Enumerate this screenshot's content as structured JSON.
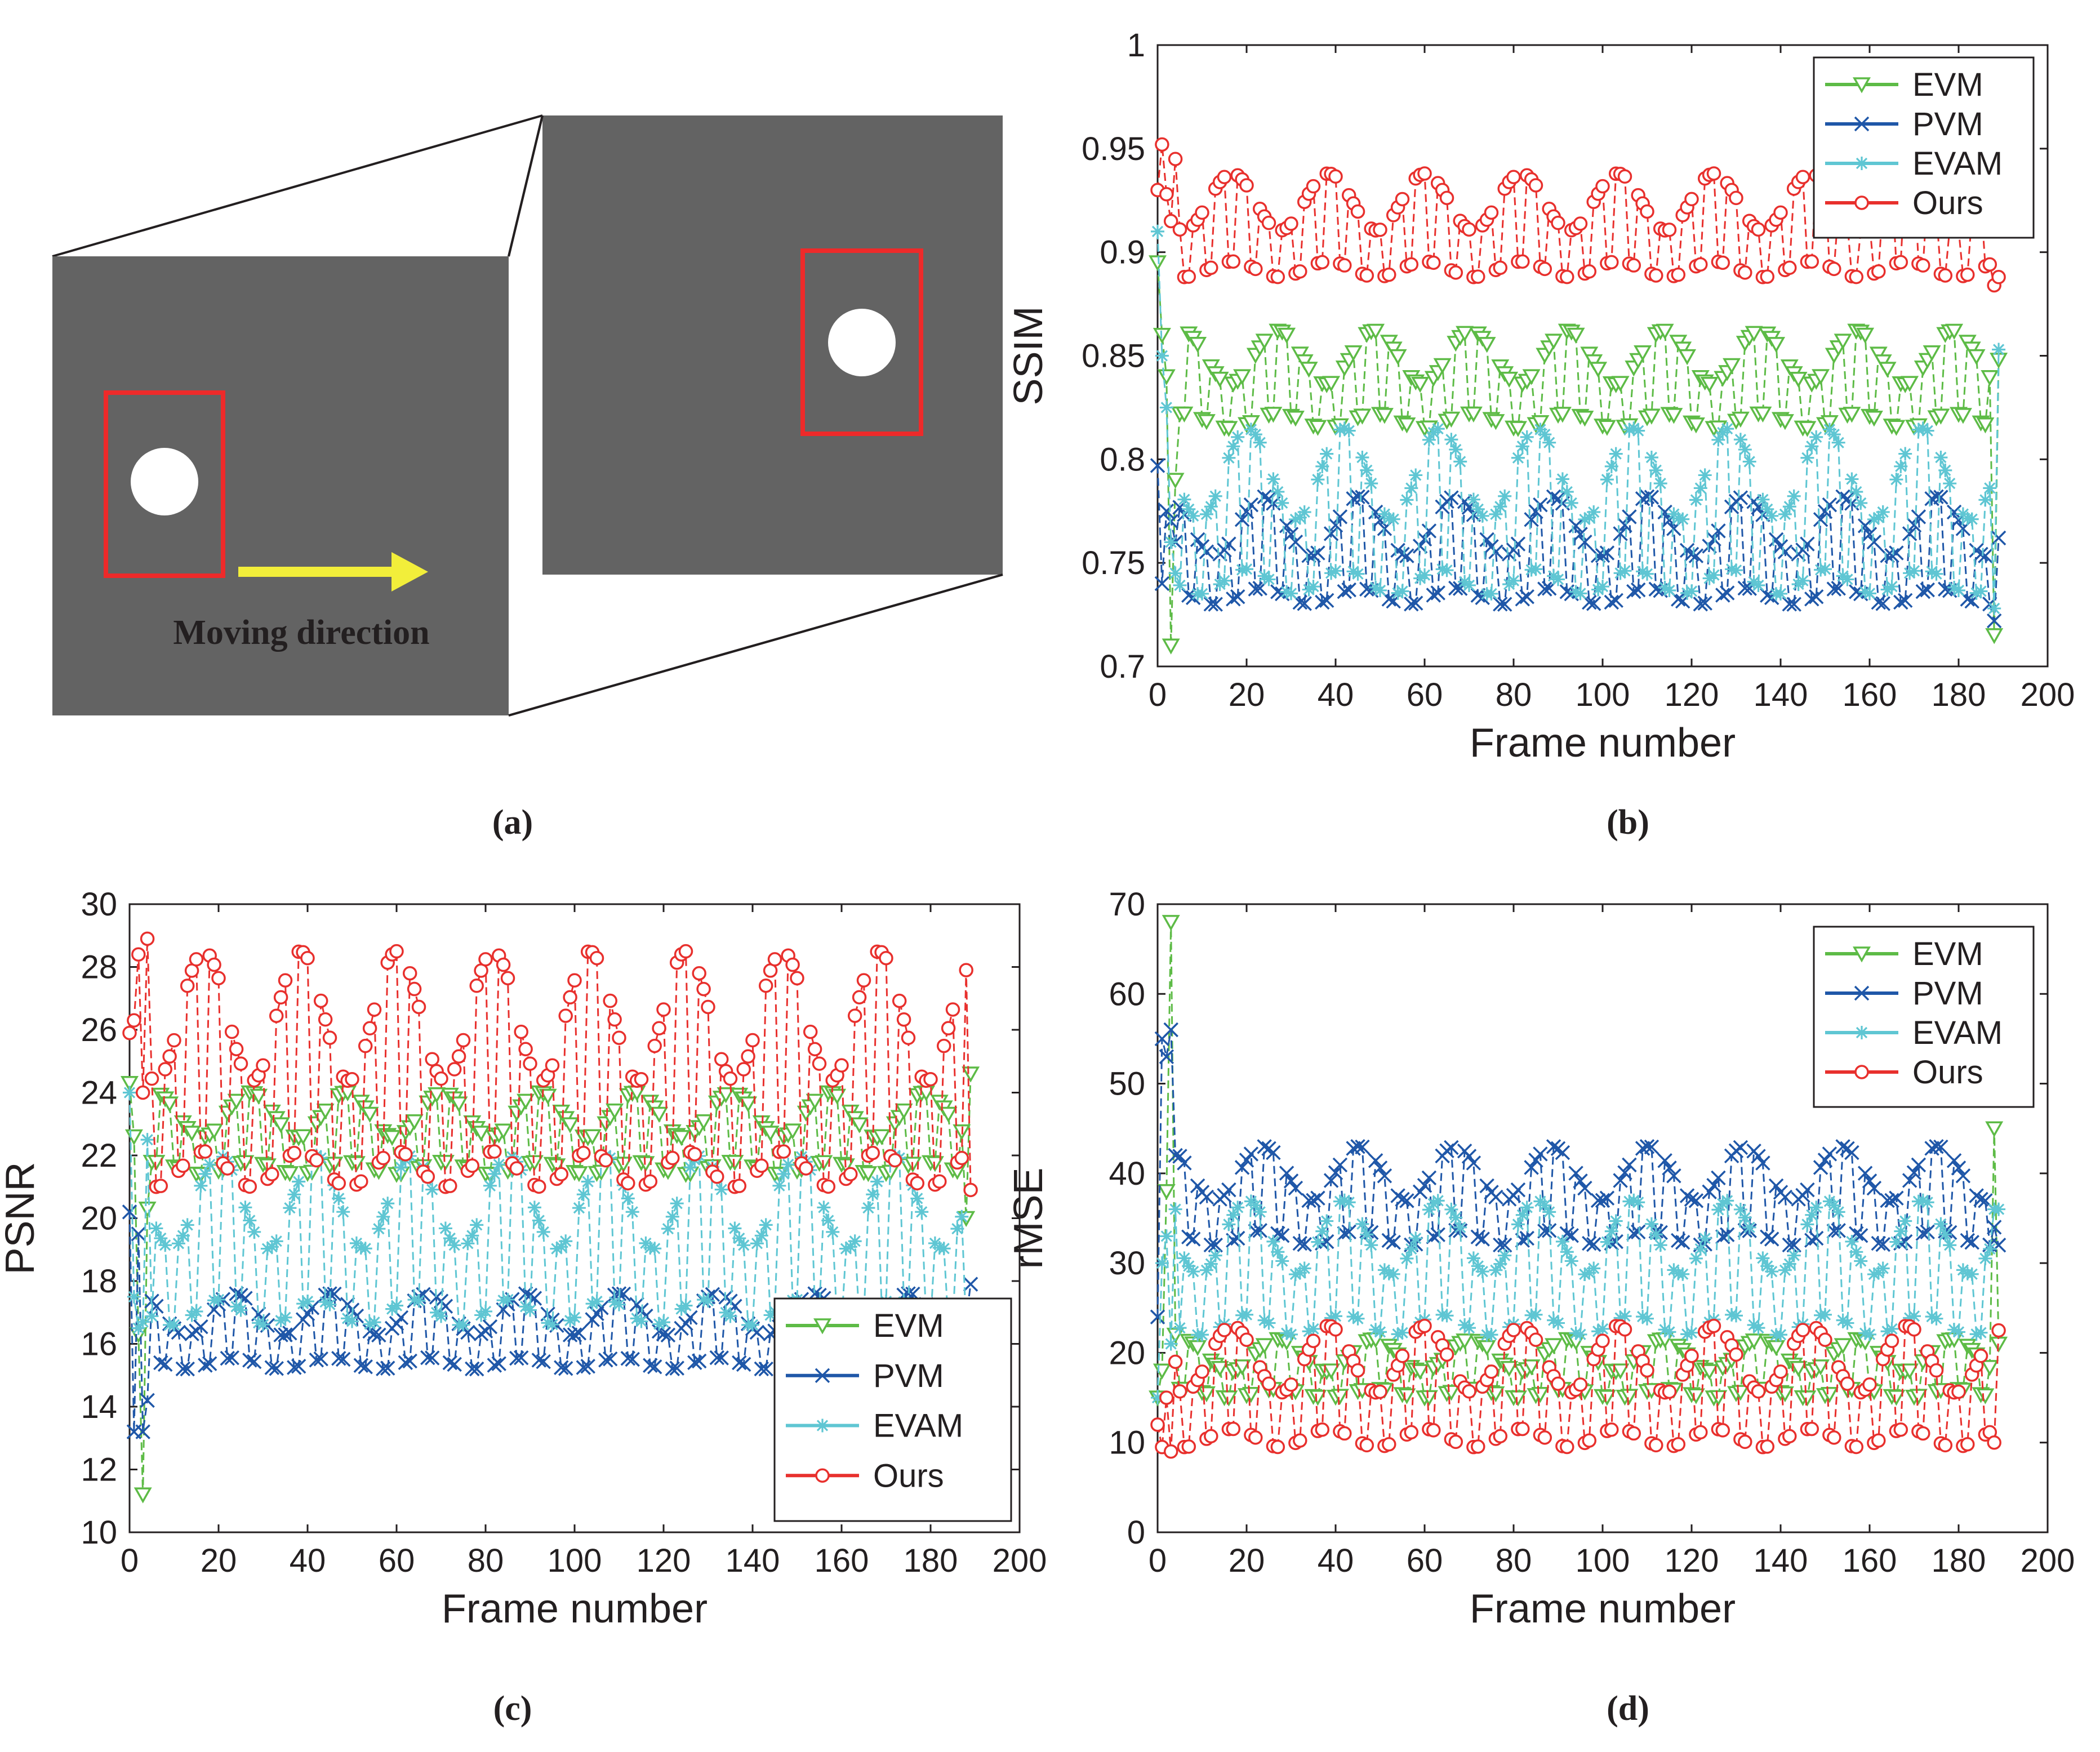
{
  "panel_a": {
    "label": "(a)",
    "text": "Moving direction",
    "colors": {
      "frame": "#636363",
      "box": "#ee2a2a",
      "arrow": "#f2ee3a",
      "object": "#ffffff"
    }
  },
  "chart_data": [
    {
      "id": "b",
      "panel_label": "(b)",
      "type": "line",
      "title": "",
      "xlabel": "Frame number",
      "ylabel": "SSIM",
      "xlim": [
        0,
        200
      ],
      "ylim": [
        0.7,
        1
      ],
      "xticks": [
        "0",
        "20",
        "40",
        "60",
        "80",
        "100",
        "120",
        "140",
        "160",
        "180",
        "200"
      ],
      "yticks": [
        "0.7",
        "0.75",
        "0.8",
        "0.85",
        "0.9",
        "0.95",
        "1"
      ],
      "legend": "top-right",
      "series": [
        {
          "name": "EVM",
          "color": "#5dbb46",
          "marker": "triangle-down",
          "low": 0.815,
          "high": 0.862,
          "start": [
            0.895,
            0.86,
            0.84,
            0.71,
            0.79
          ],
          "end": [
            0.715,
            0.848
          ]
        },
        {
          "name": "PVM",
          "color": "#1f57a8",
          "marker": "x",
          "low": 0.73,
          "high": 0.782,
          "start": [
            0.797,
            0.74,
            0.775,
            0.77,
            0.76
          ],
          "end": [
            0.722,
            0.762
          ]
        },
        {
          "name": "EVAM",
          "color": "#5fc6d3",
          "marker": "asterisk",
          "low": 0.735,
          "high": 0.815,
          "start": [
            0.91,
            0.85,
            0.825,
            0.76,
            0.745
          ],
          "end": [
            0.728,
            0.853
          ]
        },
        {
          "name": "Ours",
          "color": "#e8302d",
          "marker": "circle",
          "low": 0.888,
          "high": 0.938,
          "start": [
            0.93,
            0.952,
            0.928,
            0.915,
            0.945
          ],
          "end": [
            0.884,
            0.888
          ]
        }
      ]
    },
    {
      "id": "c",
      "panel_label": "(c)",
      "type": "line",
      "title": "",
      "xlabel": "Frame number",
      "ylabel": "PSNR",
      "xlim": [
        0,
        200
      ],
      "ylim": [
        10,
        30
      ],
      "xticks": [
        "0",
        "20",
        "40",
        "60",
        "80",
        "100",
        "120",
        "140",
        "160",
        "180",
        "200"
      ],
      "yticks": [
        "10",
        "12",
        "14",
        "16",
        "18",
        "20",
        "22",
        "24",
        "26",
        "28",
        "30"
      ],
      "legend": "bottom-right",
      "series": [
        {
          "name": "EVM",
          "color": "#5dbb46",
          "marker": "triangle-down",
          "low": 21.4,
          "high": 24.0,
          "start": [
            24.3,
            22.6,
            16.3,
            11.2,
            20.3
          ],
          "end": [
            20.0,
            24.6
          ]
        },
        {
          "name": "PVM",
          "color": "#1f57a8",
          "marker": "x",
          "low": 15.2,
          "high": 17.6,
          "start": [
            20.2,
            13.2,
            19.5,
            13.2,
            14.2
          ],
          "end": [
            16.8,
            17.9
          ]
        },
        {
          "name": "EVAM",
          "color": "#5fc6d3",
          "marker": "asterisk",
          "low": 16.6,
          "high": 22.0,
          "start": [
            24.0,
            17.5,
            16.5,
            16.7,
            22.5
          ],
          "end": [
            16.5,
            17.0
          ]
        },
        {
          "name": "Ours",
          "color": "#e8302d",
          "marker": "circle",
          "low": 21.0,
          "high": 28.5,
          "start": [
            25.9,
            26.3,
            28.4,
            24.0,
            28.9
          ],
          "end": [
            27.9,
            20.9
          ]
        }
      ]
    },
    {
      "id": "d",
      "panel_label": "(d)",
      "type": "line",
      "title": "",
      "xlabel": "Frame number",
      "ylabel": "rMSE",
      "xlim": [
        0,
        200
      ],
      "ylim": [
        0,
        70
      ],
      "xticks": [
        "0",
        "20",
        "40",
        "60",
        "80",
        "100",
        "120",
        "140",
        "160",
        "180",
        "200"
      ],
      "yticks": [
        "0",
        "10",
        "20",
        "30",
        "40",
        "50",
        "60",
        "70"
      ],
      "legend": "top-right",
      "series": [
        {
          "name": "EVM",
          "color": "#5dbb46",
          "marker": "triangle-down",
          "low": 15.0,
          "high": 21.5,
          "start": [
            15.0,
            18.0,
            38.0,
            68.0,
            22.0
          ],
          "end": [
            45.0,
            21.0
          ]
        },
        {
          "name": "PVM",
          "color": "#1f57a8",
          "marker": "x",
          "low": 32.0,
          "high": 43.0,
          "start": [
            24.0,
            55.0,
            53.0,
            56.0,
            42.0
          ],
          "end": [
            34.0,
            32.0
          ]
        },
        {
          "name": "EVAM",
          "color": "#5fc6d3",
          "marker": "asterisk",
          "low": 22.0,
          "high": 37.0,
          "start": [
            15.0,
            30.0,
            33.0,
            21.0,
            36.0
          ],
          "end": [
            36.0,
            36.0
          ]
        },
        {
          "name": "Ours",
          "color": "#e8302d",
          "marker": "circle",
          "low": 9.5,
          "high": 23.0,
          "start": [
            12.0,
            9.5,
            15.0,
            9.0,
            19.0
          ],
          "end": [
            10.0,
            22.5
          ]
        }
      ]
    }
  ]
}
